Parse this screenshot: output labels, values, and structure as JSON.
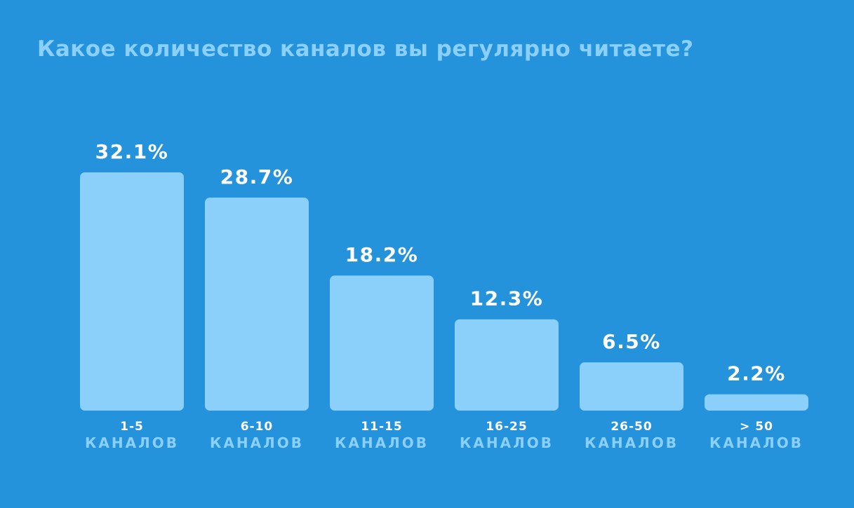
{
  "chart_data": {
    "type": "bar",
    "title": "Какое количество каналов вы регулярно читаете?",
    "categories": [
      "1-5",
      "6-10",
      "11-15",
      "16-25",
      "26-50",
      "> 50"
    ],
    "category_unit": "КАНАЛОВ",
    "values": [
      32.1,
      28.7,
      18.2,
      12.3,
      6.5,
      2.2
    ],
    "value_labels": [
      "32.1%",
      "28.7%",
      "18.2%",
      "12.3%",
      "6.5%",
      "2.2%"
    ],
    "ylim": [
      0,
      32.1
    ],
    "grid": false,
    "colors": {
      "background": "#2593dc",
      "bar": "#8ad0fb",
      "value_text": "#ffffff",
      "category_text": "#ffffff",
      "unit_text": "#8ad0fb",
      "title_text": "#8ad0fb"
    }
  }
}
